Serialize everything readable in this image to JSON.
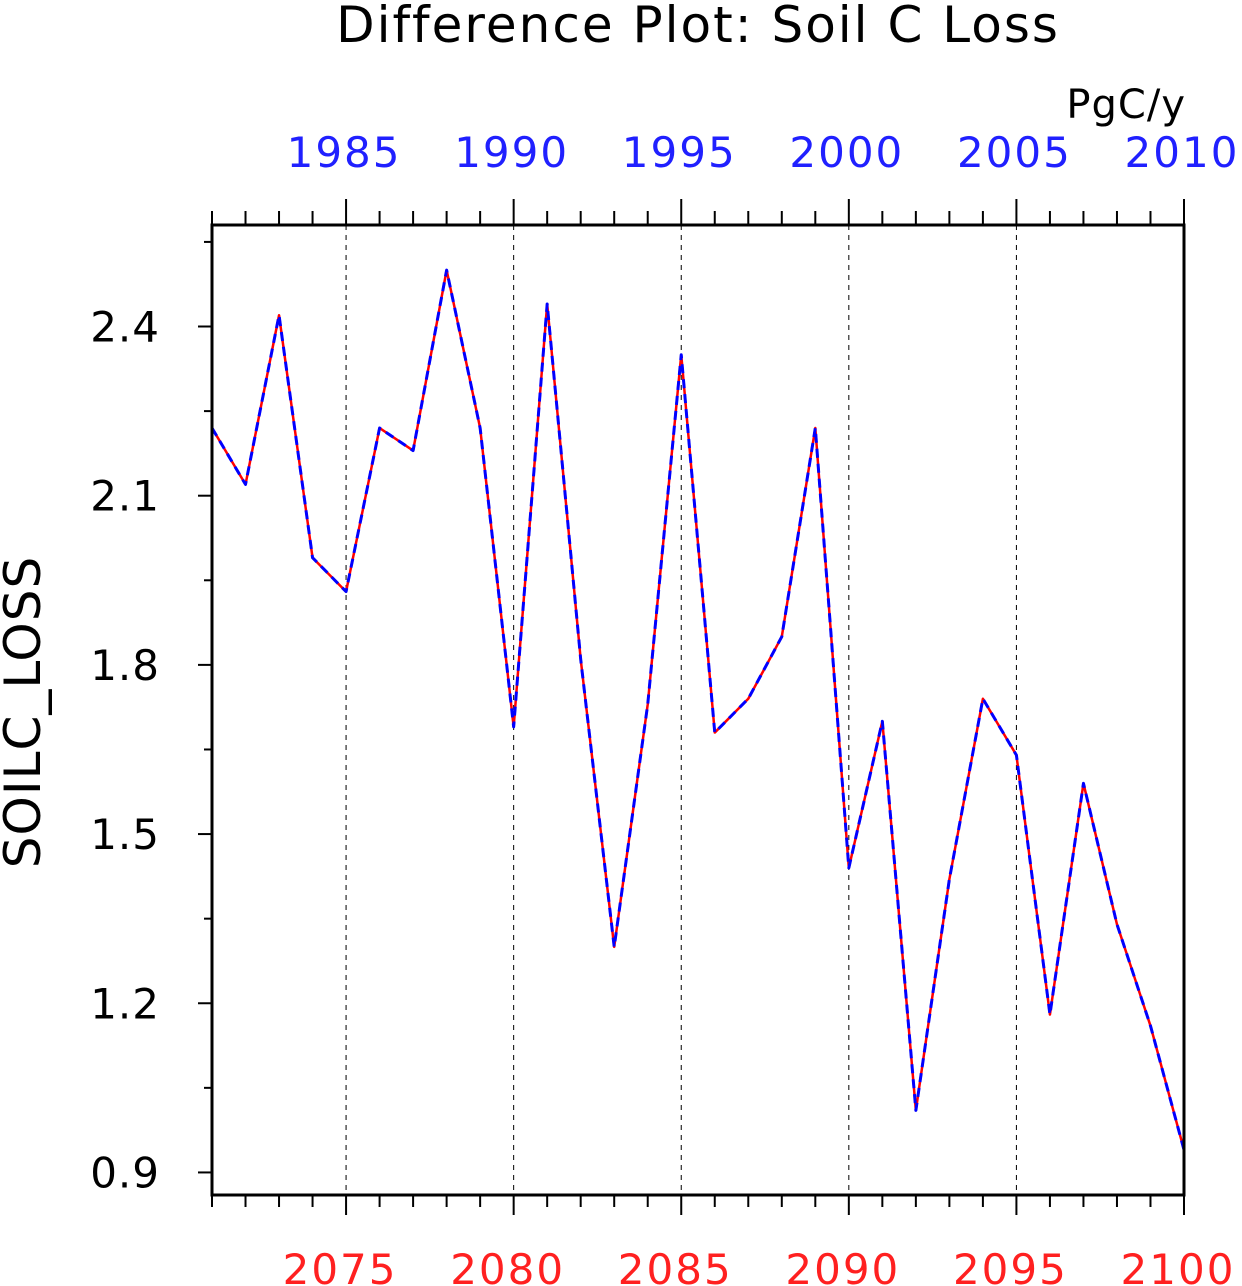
{
  "chart_data": {
    "type": "line",
    "title": "Difference Plot: Soil C Loss",
    "units": "PgC/y",
    "ylabel": "SOILC_LOSS",
    "ylim": [
      0.86,
      2.58
    ],
    "yticks": [
      0.9,
      1.2,
      1.5,
      1.8,
      2.1,
      2.4
    ],
    "ytick_labels": [
      "0.9",
      "1.2",
      "1.5",
      "1.8",
      "2.1",
      "2.4"
    ],
    "x_bottom": {
      "range": [
        2071,
        2100
      ],
      "ticks": [
        2075,
        2080,
        2085,
        2090,
        2095,
        2100
      ],
      "tick_labels": [
        "2075",
        "2080",
        "2085",
        "2090",
        "2095",
        "2100"
      ],
      "color": "#ff2020"
    },
    "x_top": {
      "range": [
        1981,
        2010
      ],
      "ticks": [
        1985,
        1990,
        1995,
        2000,
        2005,
        2010
      ],
      "tick_labels": [
        "1985",
        "1990",
        "1995",
        "2000",
        "2005",
        "2010"
      ],
      "color": "#2020ff"
    },
    "grid": "vertical dashed at major bottom ticks",
    "x": [
      2071,
      2072,
      2073,
      2074,
      2075,
      2076,
      2077,
      2078,
      2079,
      2080,
      2081,
      2082,
      2083,
      2084,
      2085,
      2086,
      2087,
      2088,
      2089,
      2090,
      2091,
      2092,
      2093,
      2094,
      2095,
      2096,
      2097,
      2098,
      2099,
      2100
    ],
    "series": [
      {
        "color": "#ff0000",
        "style": "solid",
        "values": [
          2.22,
          2.12,
          2.42,
          1.99,
          1.93,
          2.22,
          2.18,
          2.5,
          2.22,
          1.69,
          2.44,
          1.81,
          1.3,
          1.73,
          2.35,
          1.68,
          1.74,
          1.85,
          2.22,
          1.44,
          1.7,
          1.01,
          1.42,
          1.74,
          1.64,
          1.18,
          1.59,
          1.34,
          1.16,
          0.94
        ]
      },
      {
        "color": "#0000ff",
        "style": "dashed",
        "values": [
          2.22,
          2.12,
          2.42,
          1.99,
          1.93,
          2.22,
          2.18,
          2.5,
          2.22,
          1.69,
          2.44,
          1.81,
          1.3,
          1.73,
          2.35,
          1.68,
          1.74,
          1.85,
          2.22,
          1.44,
          1.7,
          1.01,
          1.42,
          1.74,
          1.64,
          1.18,
          1.59,
          1.34,
          1.16,
          0.94
        ]
      }
    ]
  }
}
